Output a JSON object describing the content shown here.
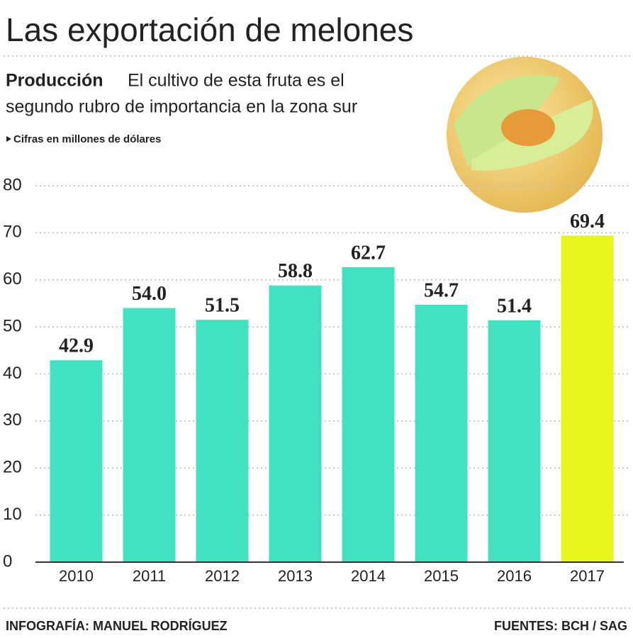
{
  "chart_data": {
    "type": "bar",
    "title": "Las exportación de melones",
    "subtitle_lead": "Producción",
    "subtitle_lines": [
      "El cultivo de esta fruta es el",
      "segundo rubro de importancia en la zona sur"
    ],
    "note": "Cifras en millones de dólares",
    "categories": [
      "2010",
      "2011",
      "2012",
      "2013",
      "2014",
      "2015",
      "2016",
      "2017"
    ],
    "values": [
      42.9,
      54.0,
      51.5,
      58.8,
      62.7,
      54.7,
      51.4,
      69.4
    ],
    "value_labels": [
      "42.9",
      "54.0",
      "51.5",
      "58.8",
      "62.7",
      "54.7",
      "51.4",
      "69.4"
    ],
    "colors": [
      "#40e2c2",
      "#40e2c2",
      "#40e2c2",
      "#40e2c2",
      "#40e2c2",
      "#40e2c2",
      "#40e2c2",
      "#e6f51c"
    ],
    "ylim": [
      0,
      80
    ],
    "yticks": [
      0,
      10,
      20,
      30,
      40,
      50,
      60,
      70,
      80
    ],
    "grid": true,
    "credit": "INFOGRAFÍA: MANUEL RODRÍGUEZ",
    "source": "FUENTES: BCH / SAG"
  }
}
